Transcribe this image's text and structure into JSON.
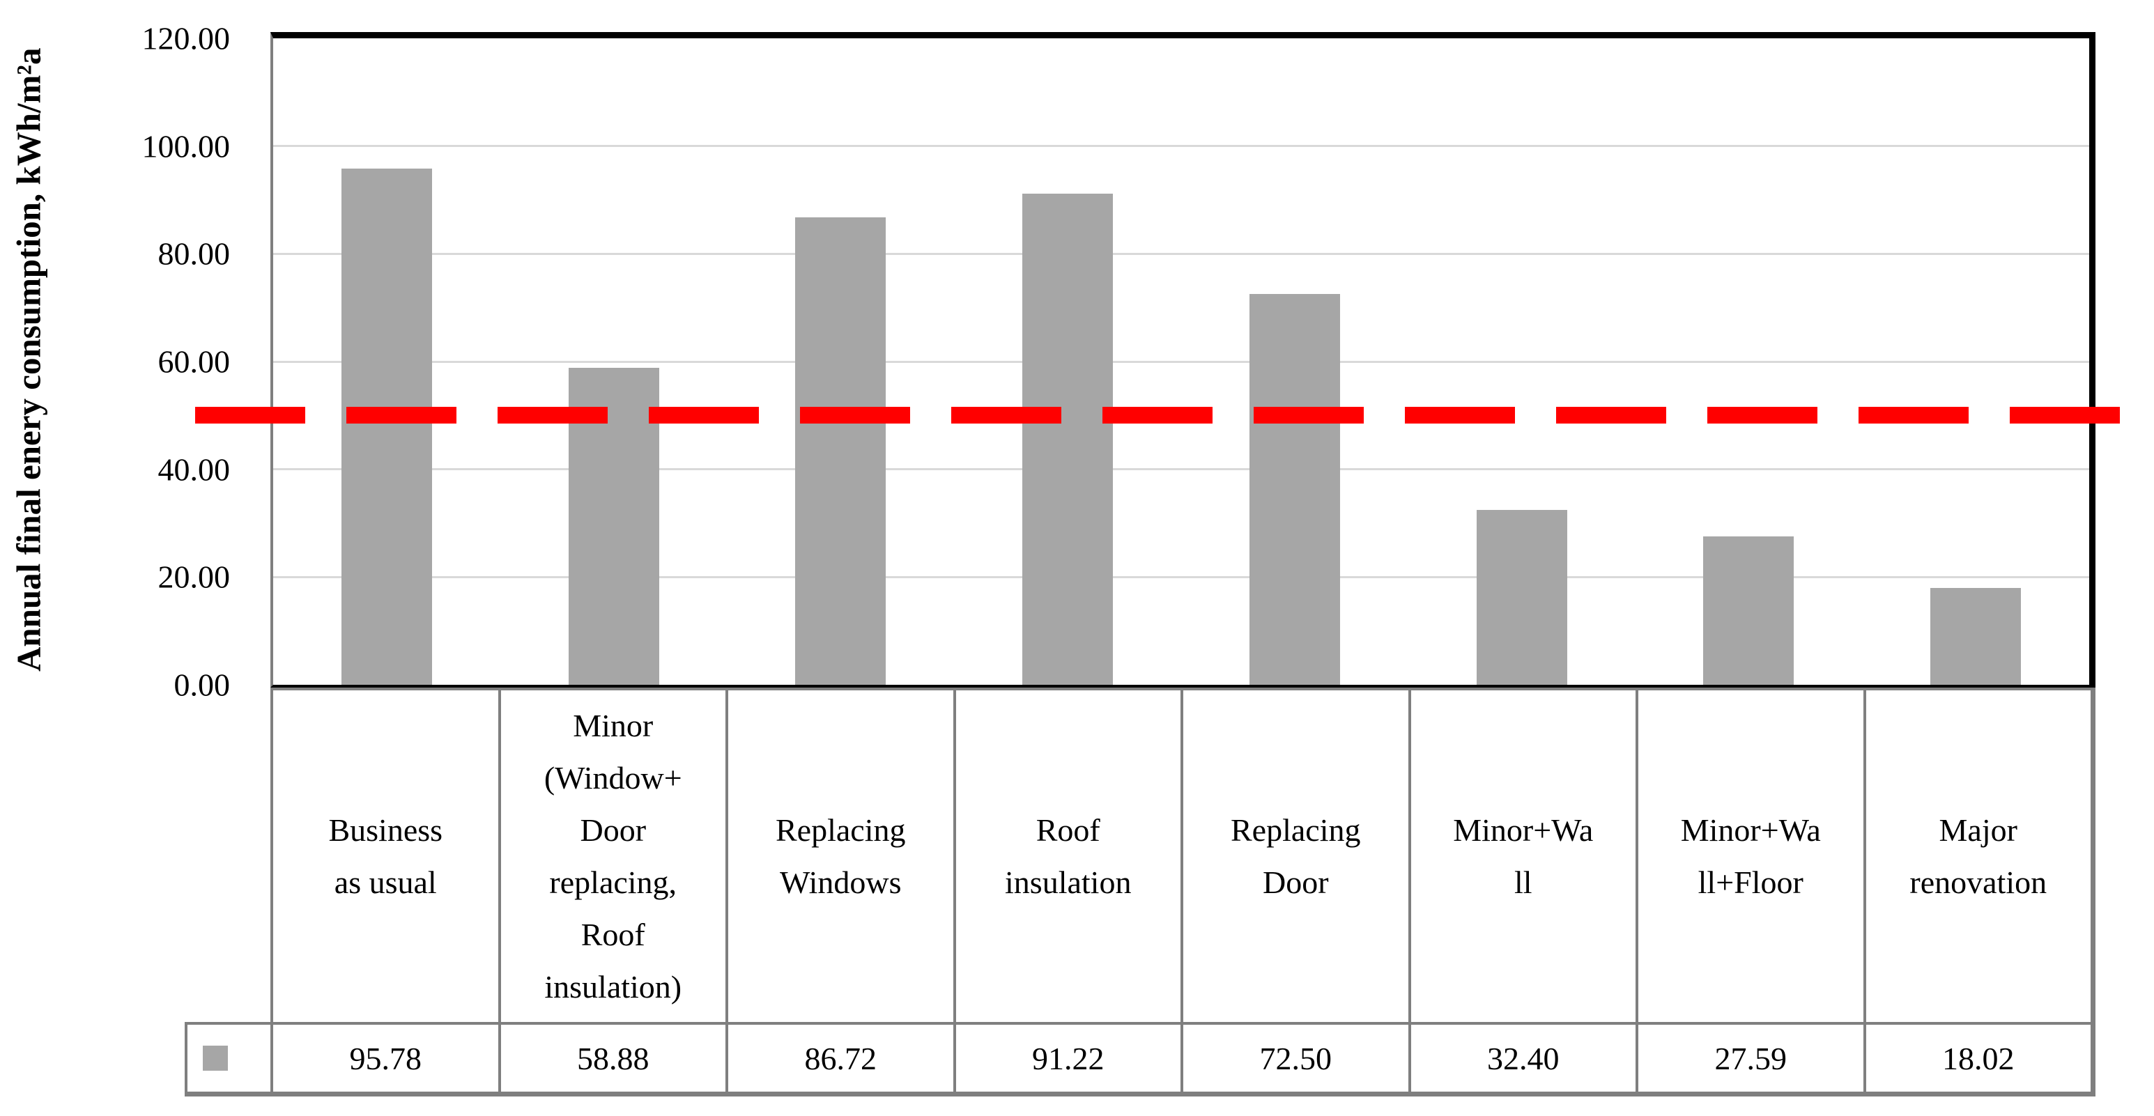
{
  "y_axis": {
    "title": "Annual final enery consumption, kWh/m²a",
    "ticks": [
      "120.00",
      "100.00",
      "80.00",
      "60.00",
      "40.00",
      "20.00",
      "0.00"
    ]
  },
  "categories_display": [
    "Business\nas usual",
    "Minor\n(Window+\nDoor\nreplacing,\nRoof\ninsulation)",
    "Replacing\nWindows",
    "Roof\ninsulation",
    "Replacing\nDoor",
    "Minor+Wa\nll",
    "Minor+Wa\nll+Floor",
    "Major\nrenovation"
  ],
  "table_values": [
    "95.78",
    "58.88",
    "86.72",
    "91.22",
    "72.50",
    "32.40",
    "27.59",
    "18.02"
  ],
  "chart_data": {
    "type": "bar",
    "title": "",
    "categories": [
      "Business as usual",
      "Minor (Window+Door replacing, Roof insulation)",
      "Replacing Windows",
      "Roof insulation",
      "Replacing Door",
      "Minor+Wall",
      "Minor+Wall+Floor",
      "Major renovation"
    ],
    "values": [
      95.78,
      58.88,
      86.72,
      91.22,
      72.5,
      32.4,
      27.59,
      18.02
    ],
    "xlabel": "",
    "ylabel": "Annual final enery consumption, kWh/m²a",
    "ylim": [
      0,
      120
    ],
    "ytick_step": 20,
    "grid": true,
    "legend_position": "table-left",
    "data_table_shown": true,
    "bar_color": "#A6A6A6",
    "gridline_color": "#D9D9D9",
    "axis_color": "#7F7F7F",
    "frame_color": "#000000",
    "legend_marker_color": "#A6A6A6",
    "reference_line": {
      "value": 50,
      "color": "#FF0000",
      "style": "dashed"
    }
  }
}
